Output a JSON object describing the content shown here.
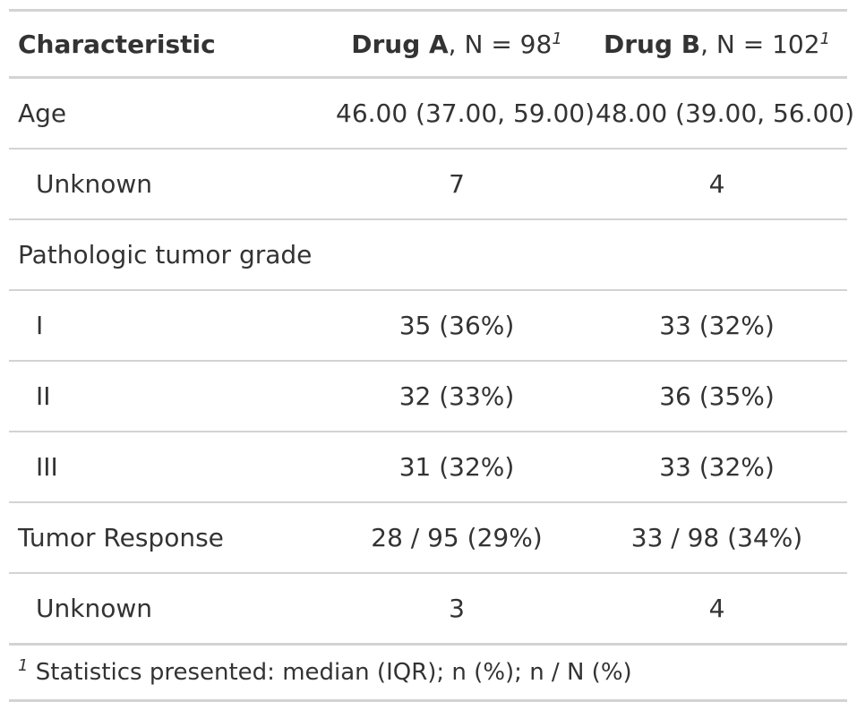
{
  "table": {
    "header": {
      "label": "Characteristic",
      "col_a_name": "Drug A",
      "col_a_n": ", N = 98",
      "col_b_name": "Drug B",
      "col_b_n": ", N = 102",
      "footnote_mark": "1"
    },
    "rows": [
      {
        "label": "Age",
        "a": "46.00 (37.00, 59.00)",
        "b": "48.00 (39.00, 56.00)"
      },
      {
        "label": "Unknown",
        "a": "7",
        "b": "4"
      },
      {
        "label": "Pathologic tumor grade",
        "a": "",
        "b": ""
      },
      {
        "label": "I",
        "a": "35 (36%)",
        "b": "33 (32%)"
      },
      {
        "label": "II",
        "a": "32 (33%)",
        "b": "36 (35%)"
      },
      {
        "label": "III",
        "a": "31 (32%)",
        "b": "33 (32%)"
      },
      {
        "label": "Tumor Response",
        "a": "28 / 95 (29%)",
        "b": "33 / 98 (34%)"
      },
      {
        "label": "Unknown",
        "a": "3",
        "b": "4"
      }
    ],
    "footnote": {
      "mark": "1",
      "text": "Statistics presented: median (IQR); n (%); n / N (%)"
    }
  }
}
